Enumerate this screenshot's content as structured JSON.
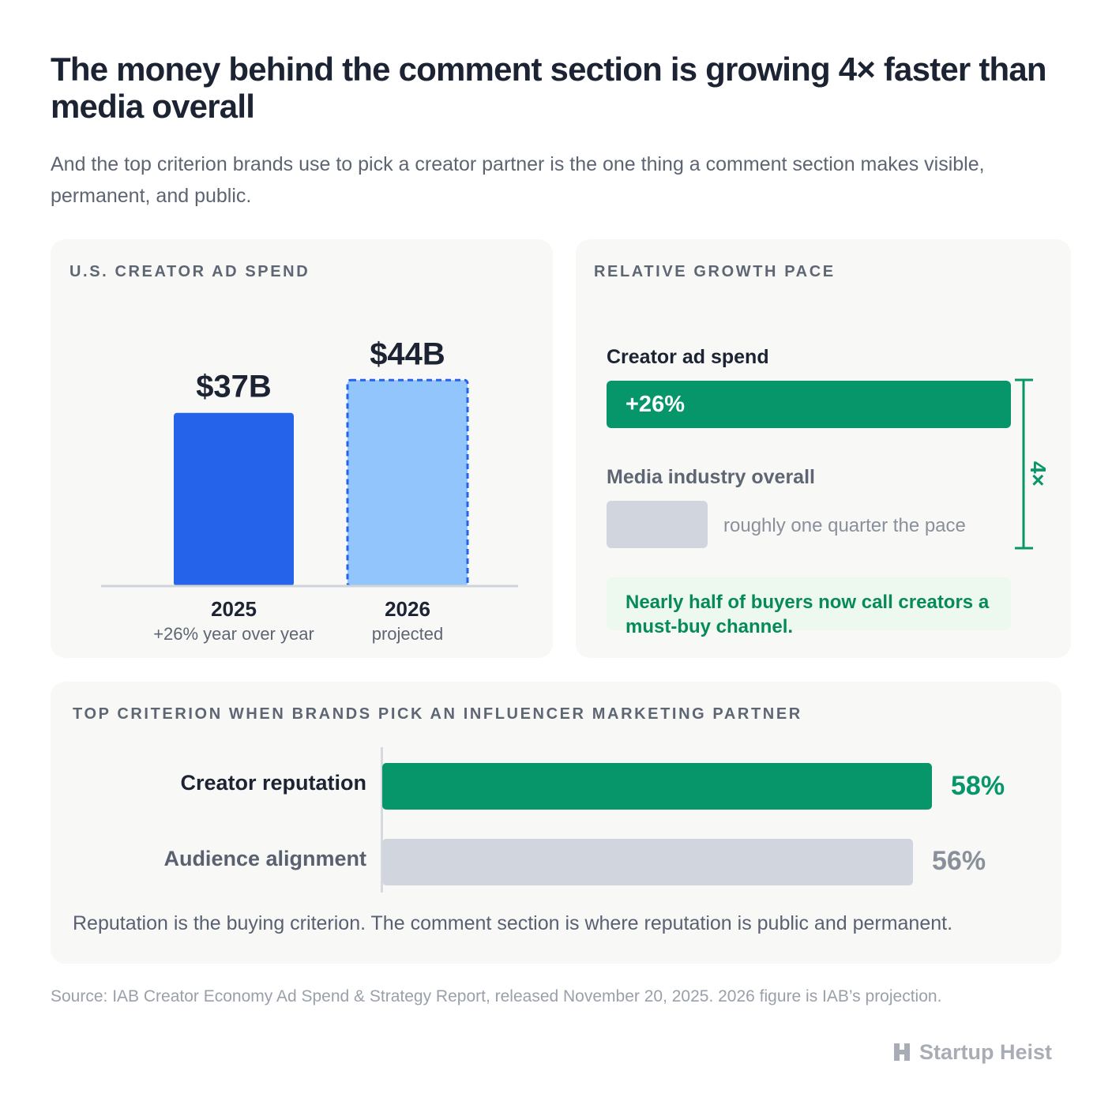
{
  "title": "The money behind the comment section is growing 4× faster than media overall",
  "subtitle": "And the top criterion brands use to pick a creator partner is the one thing a comment section makes visible, permanent, and public.",
  "colors": {
    "spend_2025": "#2563eb",
    "spend_2026": "#93c5fd",
    "spend_2026_border": "#2563eb",
    "green": "#079669",
    "gray_bar": "#d1d5de"
  },
  "chart_data": [
    {
      "type": "bar",
      "title": "U.S. CREATOR AD SPEND",
      "categories": [
        "2025",
        "2026"
      ],
      "category_notes": [
        "+26% year over year",
        "projected"
      ],
      "values": [
        37,
        44
      ],
      "value_labels": [
        "$37B",
        "$44B"
      ],
      "ylim": [
        0,
        54
      ],
      "grid": false,
      "projected": [
        false,
        true
      ]
    },
    {
      "type": "bar",
      "orientation": "horizontal",
      "title": "RELATIVE GROWTH PACE",
      "categories": [
        "Creator ad spend",
        "Media industry overall"
      ],
      "values": [
        26,
        6.5
      ],
      "value_labels": [
        "+26%",
        ""
      ],
      "notes": [
        "",
        "roughly one quarter the pace"
      ],
      "multiplier_label": "4×",
      "callout": "Nearly half of buyers now call creators a must-buy channel."
    },
    {
      "type": "bar",
      "orientation": "horizontal",
      "title": "TOP CRITERION WHEN BRANDS PICK AN INFLUENCER MARKETING PARTNER",
      "categories": [
        "Creator reputation",
        "Audience alignment"
      ],
      "values": [
        58,
        56
      ],
      "value_labels": [
        "58%",
        "56%"
      ],
      "xlim": [
        0,
        60
      ],
      "caption": "Reputation is the buying criterion. The comment section is where reputation is public and permanent."
    }
  ],
  "source": "Source: IAB Creator Economy Ad Spend & Strategy Report, released November 20, 2025. 2026 figure is IAB’s projection.",
  "brand": {
    "name": "Startup Heist",
    "icon": "startup-heist-logo-icon"
  }
}
